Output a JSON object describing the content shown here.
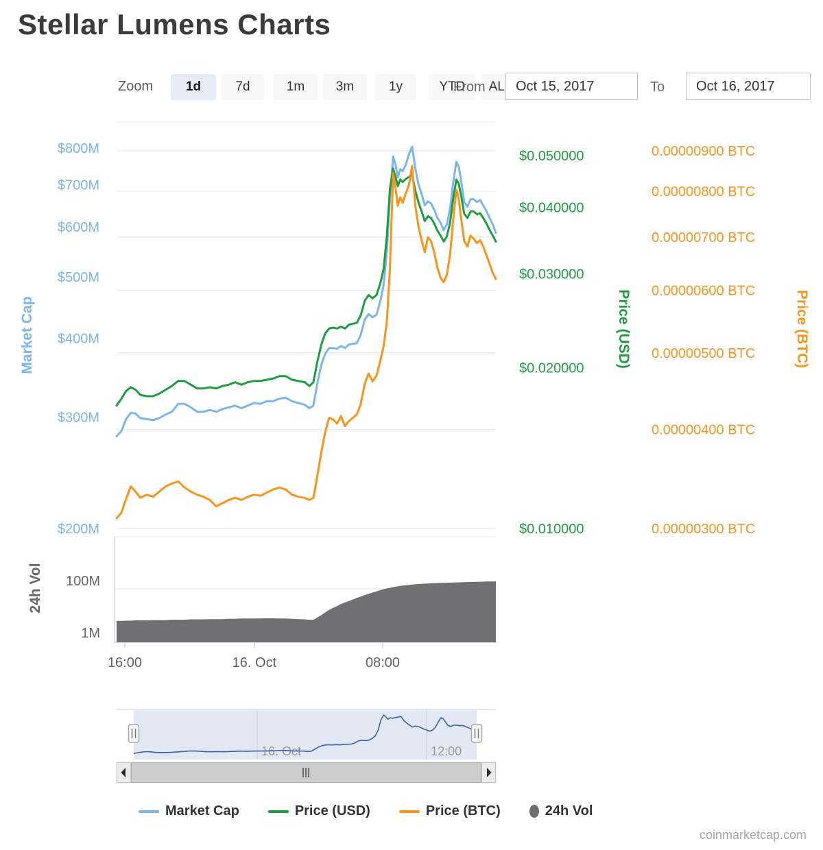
{
  "title": "Stellar Lumens Charts",
  "toolbar": {
    "zoom_label": "Zoom",
    "buttons": [
      {
        "label": "1d",
        "active": true
      },
      {
        "label": "7d",
        "active": false
      },
      {
        "label": "1m",
        "active": false
      },
      {
        "label": "3m",
        "active": false
      },
      {
        "label": "1y",
        "active": false
      },
      {
        "label": "YTD",
        "active": false
      },
      {
        "label": "ALL",
        "active": false
      }
    ],
    "from_label": "From",
    "from_value": "Oct 15, 2017",
    "to_label": "To",
    "to_value": "Oct 16, 2017"
  },
  "legend": {
    "items": [
      {
        "label": "Market Cap",
        "color": "#7cb5ec",
        "marker": "line"
      },
      {
        "label": "Price (USD)",
        "color": "#1f9c41",
        "marker": "line"
      },
      {
        "label": "Price (BTC)",
        "color": "#f7941e",
        "marker": "line"
      },
      {
        "label": "24h Vol",
        "color": "#6e6e6e",
        "marker": "circle"
      }
    ]
  },
  "watermark": "coinmarketcap.com",
  "chart_data": {
    "type": "line",
    "title": "Stellar Lumens Charts",
    "x_unit": "hours from Oct 15 2017 ~15:30 UTC (24h window)",
    "x_range": [
      0,
      24
    ],
    "x_ticks": [
      {
        "label": "16:00",
        "t": 0.52
      },
      {
        "label": "16. Oct",
        "t": 8.72
      },
      {
        "label": "08:00",
        "t": 16.84
      }
    ],
    "axes": {
      "market_cap": {
        "title": "Market Cap",
        "color": "#7cb5ec",
        "scale": "log",
        "unit": "USD millions",
        "ticks": [
          {
            "label": "$800M",
            "v": 800
          },
          {
            "label": "$700M",
            "v": 700
          },
          {
            "label": "$600M",
            "v": 600
          },
          {
            "label": "$500M",
            "v": 500
          },
          {
            "label": "$400M",
            "v": 400
          },
          {
            "label": "$300M",
            "v": 300
          },
          {
            "label": "$200M",
            "v": 200
          }
        ]
      },
      "price_usd": {
        "title": "Price (USD)",
        "color": "#1f9c41",
        "scale": "log",
        "unit": "USD",
        "ticks": [
          {
            "label": "$0.050000",
            "v": 0.05
          },
          {
            "label": "$0.040000",
            "v": 0.04
          },
          {
            "label": "$0.030000",
            "v": 0.03
          },
          {
            "label": "$0.020000",
            "v": 0.02
          },
          {
            "label": "$0.010000",
            "v": 0.01
          }
        ]
      },
      "price_btc": {
        "title": "Price (BTC)",
        "color": "#f7941e",
        "scale": "log",
        "unit": "BTC (values in millionths)",
        "ticks": [
          {
            "label": "0.00000900 BTC",
            "v": 9
          },
          {
            "label": "0.00000800 BTC",
            "v": 8
          },
          {
            "label": "0.00000700 BTC",
            "v": 7
          },
          {
            "label": "0.00000600 BTC",
            "v": 6
          },
          {
            "label": "0.00000500 BTC",
            "v": 5
          },
          {
            "label": "0.00000400 BTC",
            "v": 4
          },
          {
            "label": "0.00000300 BTC",
            "v": 3
          }
        ]
      },
      "volume": {
        "title": "24h Vol",
        "color": "#666666",
        "scale": "log",
        "unit": "USD millions",
        "ticks": [
          {
            "label": "100M",
            "v": 100
          },
          {
            "label": "1M",
            "v": 1
          }
        ]
      }
    },
    "t": [
      0,
      0.3,
      0.6,
      0.9,
      1.2,
      1.5,
      1.9,
      2.3,
      2.7,
      3.1,
      3.5,
      3.9,
      4.3,
      4.7,
      5.1,
      5.5,
      5.9,
      6.3,
      6.7,
      7.1,
      7.5,
      7.9,
      8.3,
      8.7,
      9.1,
      9.5,
      9.9,
      10.3,
      10.7,
      11.1,
      11.5,
      11.9,
      12.2,
      12.45,
      12.7,
      12.95,
      13.2,
      13.45,
      13.7,
      13.95,
      14.2,
      14.45,
      14.7,
      14.95,
      15.2,
      15.45,
      15.7,
      15.95,
      16.2,
      16.45,
      16.7,
      16.9,
      17.1,
      17.3,
      17.5,
      17.65,
      17.8,
      17.95,
      18.1,
      18.3,
      18.5,
      18.7,
      18.9,
      19.1,
      19.3,
      19.5,
      19.7,
      19.9,
      20.1,
      20.3,
      20.5,
      20.7,
      20.9,
      21.1,
      21.3,
      21.5,
      21.65,
      21.8,
      22.0,
      22.2,
      22.4,
      22.6,
      22.8,
      23.0,
      23.2,
      23.4,
      23.6,
      23.8,
      24.0
    ],
    "series": [
      {
        "name": "Market Cap",
        "axis": "market_cap",
        "color": "#7cb5ec",
        "type": "line",
        "values": [
          280,
          285,
          298,
          305,
          304,
          299,
          298,
          297,
          299,
          303,
          306,
          315,
          315,
          311,
          306,
          306,
          308,
          306,
          309,
          311,
          313,
          310,
          313,
          316,
          315,
          318,
          318,
          321,
          322,
          318,
          316,
          314,
          310,
          313,
          339,
          363,
          378,
          386,
          386,
          385,
          389,
          386,
          391,
          392,
          393,
          405,
          428,
          437,
          432,
          436,
          459,
          486,
          547,
          664,
          776,
          753,
          719,
          741,
          735,
          753,
          782,
          804,
          744,
          701,
          677,
          649,
          659,
          654,
          639,
          621,
          609,
          593,
          606,
          641,
          705,
          761,
          748,
          711,
          657,
          646,
          664,
          664,
          657,
          662,
          649,
          636,
          620,
          606,
          587
        ]
      },
      {
        "name": "Price (USD)",
        "axis": "price_usd",
        "color": "#1f9c41",
        "type": "line",
        "values": [
          0.017,
          0.0175,
          0.0181,
          0.0184,
          0.0182,
          0.0178,
          0.0177,
          0.0177,
          0.0179,
          0.0182,
          0.0185,
          0.0189,
          0.0189,
          0.0186,
          0.0183,
          0.0183,
          0.0184,
          0.0183,
          0.0185,
          0.0186,
          0.0188,
          0.0186,
          0.0188,
          0.0189,
          0.0189,
          0.019,
          0.0191,
          0.0193,
          0.0193,
          0.019,
          0.0189,
          0.0188,
          0.0185,
          0.0188,
          0.0205,
          0.0221,
          0.0232,
          0.0237,
          0.0238,
          0.0237,
          0.0239,
          0.0237,
          0.0241,
          0.0242,
          0.0243,
          0.0251,
          0.0267,
          0.0274,
          0.027,
          0.0274,
          0.0289,
          0.0307,
          0.0353,
          0.0434,
          0.0473,
          0.0456,
          0.0438,
          0.0451,
          0.0446,
          0.0452,
          0.0456,
          0.0461,
          0.043,
          0.0409,
          0.0393,
          0.0377,
          0.0385,
          0.0382,
          0.0373,
          0.0362,
          0.0354,
          0.0345,
          0.0353,
          0.0374,
          0.0415,
          0.0451,
          0.0443,
          0.0421,
          0.0389,
          0.0382,
          0.0393,
          0.0393,
          0.0388,
          0.039,
          0.0382,
          0.0373,
          0.0363,
          0.0354,
          0.0345
        ]
      },
      {
        "name": "Price (BTC)",
        "axis": "price_btc",
        "color": "#f7941e",
        "type": "line",
        "values": [
          3.09,
          3.14,
          3.27,
          3.39,
          3.34,
          3.28,
          3.31,
          3.29,
          3.34,
          3.39,
          3.42,
          3.44,
          3.38,
          3.34,
          3.31,
          3.29,
          3.26,
          3.2,
          3.23,
          3.26,
          3.28,
          3.26,
          3.29,
          3.31,
          3.3,
          3.33,
          3.36,
          3.38,
          3.36,
          3.31,
          3.29,
          3.28,
          3.26,
          3.28,
          3.49,
          3.74,
          3.97,
          4.14,
          4.12,
          4.07,
          4.16,
          4.04,
          4.1,
          4.14,
          4.18,
          4.31,
          4.57,
          4.71,
          4.6,
          4.68,
          4.9,
          5.1,
          5.47,
          6.41,
          8.44,
          8.07,
          7.67,
          7.86,
          7.74,
          7.95,
          8.15,
          8.61,
          7.67,
          7.23,
          6.94,
          6.7,
          7.0,
          6.92,
          6.7,
          6.41,
          6.22,
          6.14,
          6.28,
          6.65,
          7.37,
          8.04,
          7.83,
          7.4,
          6.92,
          6.81,
          7.03,
          6.97,
          6.88,
          6.94,
          6.81,
          6.65,
          6.48,
          6.31,
          6.2
        ]
      },
      {
        "name": "24h Vol",
        "axis": "volume",
        "color": "#707073",
        "type": "area",
        "values": [
          5.0,
          5.0,
          5.1,
          5.1,
          5.3,
          5.3,
          5.3,
          5.4,
          5.4,
          5.4,
          5.6,
          5.6,
          5.6,
          5.8,
          5.8,
          5.8,
          5.9,
          5.9,
          5.9,
          6.1,
          6.1,
          6.3,
          6.3,
          6.3,
          6.3,
          6.4,
          6.4,
          6.3,
          6.3,
          6.1,
          5.9,
          5.8,
          5.6,
          5.6,
          6.9,
          8.6,
          11,
          14,
          17,
          20,
          24,
          28,
          32,
          37,
          43,
          49,
          56,
          63,
          71,
          79,
          89,
          97,
          104,
          110,
          117,
          122,
          127,
          132,
          135,
          140,
          145,
          150,
          153,
          157,
          160,
          163,
          165,
          168,
          170,
          172,
          173,
          175,
          177,
          178,
          180,
          182,
          183,
          185,
          186,
          188,
          190,
          191,
          193,
          195,
          196,
          198,
          198,
          200,
          200
        ]
      }
    ],
    "navigator": {
      "series": "Price (USD)",
      "x_labels": [
        {
          "label": "16. Oct",
          "t": 8.64
        },
        {
          "label": "12:00",
          "t": 20.5
        }
      ]
    },
    "grid": "horizontal gridlines follow Price (BTC) ticks",
    "legend_position": "bottom"
  }
}
